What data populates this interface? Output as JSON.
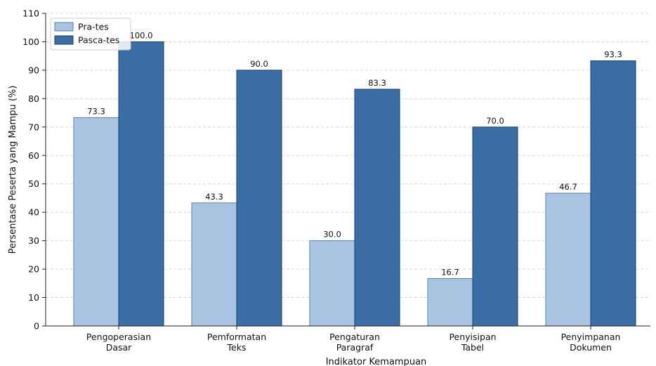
{
  "chart_data": {
    "type": "bar",
    "categories": [
      [
        "Pengoperasian",
        "Dasar"
      ],
      [
        "Pemformatan",
        "Teks"
      ],
      [
        "Pengaturan",
        "Paragraf"
      ],
      [
        "Penyisipan",
        "Tabel"
      ],
      [
        "Penyimpanan",
        "Dokumen"
      ]
    ],
    "series": [
      {
        "name": "Pra-tes",
        "values": [
          73.3,
          43.3,
          30.0,
          16.7,
          46.7
        ],
        "color": "#a8c4e0"
      },
      {
        "name": "Pasca-tes",
        "values": [
          100.0,
          90.0,
          83.3,
          70.0,
          93.3
        ],
        "color": "#3a6ea5"
      }
    ],
    "title": "",
    "xlabel": "Indikator Kemampuan",
    "ylabel": "Persentase Peserta yang Mampu (%)",
    "ylim": [
      0,
      110
    ],
    "yticks": [
      0,
      10,
      20,
      30,
      40,
      50,
      60,
      70,
      80,
      90,
      100,
      110
    ],
    "grid": "horizontal dashed",
    "legend_position": "top-left"
  }
}
